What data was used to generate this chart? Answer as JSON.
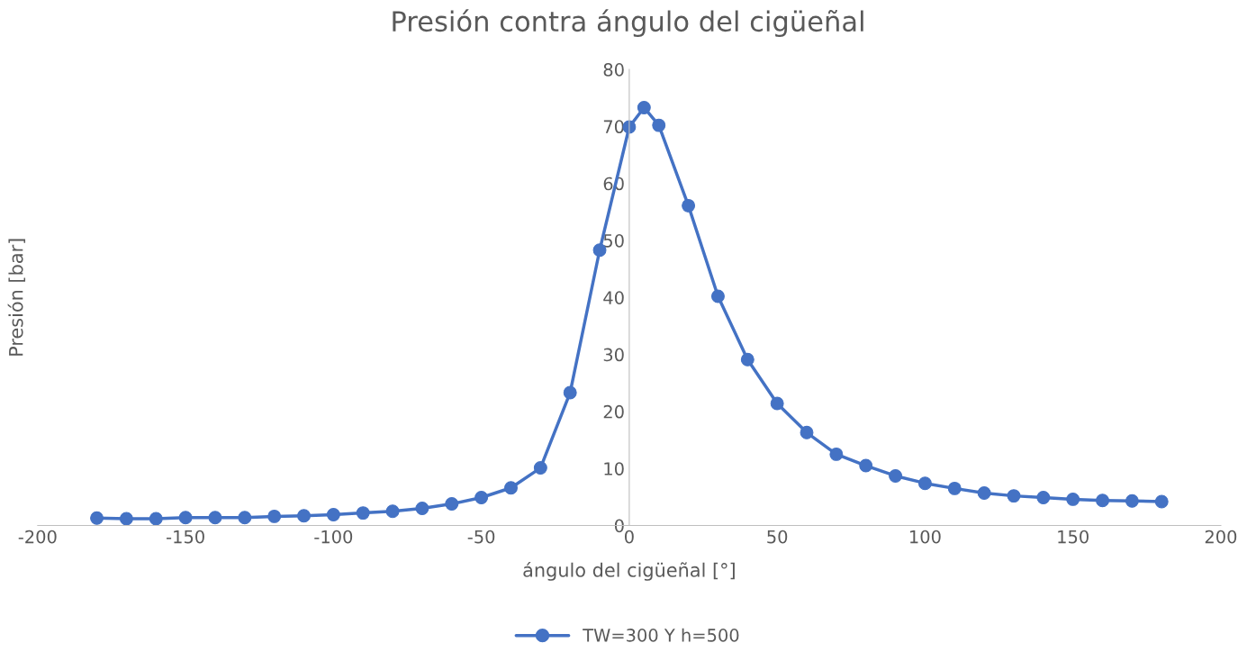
{
  "chart_data": {
    "type": "line",
    "title": "Presión contra ángulo del cigüeñal",
    "xlabel": "ángulo del cigüeñal [°]",
    "ylabel": "Presión [bar]",
    "x": [
      -180,
      -170,
      -160,
      -150,
      -140,
      -130,
      -120,
      -110,
      -100,
      -90,
      -80,
      -70,
      -60,
      -50,
      -40,
      -30,
      -20,
      -10,
      0,
      5,
      10,
      20,
      30,
      40,
      50,
      60,
      70,
      80,
      90,
      100,
      110,
      120,
      130,
      140,
      150,
      160,
      170,
      180
    ],
    "series": [
      {
        "name": "TW=300 Y h=500",
        "color": "#4472c4",
        "values": [
          1.3,
          1.2,
          1.2,
          1.4,
          1.4,
          1.4,
          1.6,
          1.7,
          1.9,
          2.2,
          2.5,
          3.0,
          3.8,
          4.9,
          6.6,
          10.1,
          23.3,
          48.3,
          69.9,
          73.3,
          70.2,
          56.1,
          40.2,
          29.1,
          21.4,
          16.3,
          12.5,
          10.5,
          8.7,
          7.4,
          6.5,
          5.7,
          5.2,
          4.9,
          4.6,
          4.4,
          4.3,
          4.2
        ]
      }
    ],
    "xlim": [
      -200,
      200
    ],
    "xticks": [
      -200,
      -150,
      -100,
      -50,
      0,
      50,
      100,
      150,
      200
    ],
    "ylim": [
      0,
      80
    ],
    "yticks": [
      0,
      10,
      20,
      30,
      40,
      50,
      60,
      70,
      80
    ],
    "grid": false,
    "legend": "bottom",
    "marker": "circle",
    "line_style": "solid"
  }
}
